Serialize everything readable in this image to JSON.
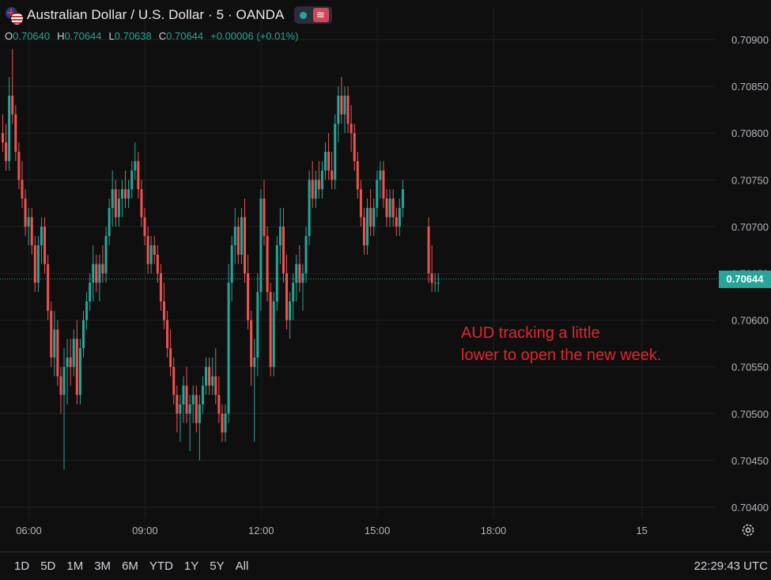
{
  "header": {
    "title": "Australian Dollar / U.S. Dollar · 5 · OANDA",
    "icons": [
      "au-us-flag-icon",
      "live-dot-icon",
      "wave-icon"
    ]
  },
  "ohlc": {
    "o_label": "O",
    "o_value": "0.70640",
    "h_label": "H",
    "h_value": "0.70644",
    "l_label": "L",
    "l_value": "0.70638",
    "c_label": "C",
    "c_value": "0.70644",
    "change": "+0.00006 (+0.01%)"
  },
  "annotation": {
    "line1": "AUD tracking a little",
    "line2": "lower to open the new week."
  },
  "last_price": "0.70644",
  "bottom": {
    "ranges": [
      "1D",
      "5D",
      "1M",
      "3M",
      "6M",
      "YTD",
      "1Y",
      "5Y",
      "All"
    ],
    "clock": "22:29:43 UTC"
  },
  "colors": {
    "up": "#26a69a",
    "down": "#ef5350",
    "annotation": "#e3262e",
    "background": "#0f0f0f"
  },
  "chart_data": {
    "type": "candlestick",
    "title": "Australian Dollar / U.S. Dollar · 5 · OANDA",
    "ylim": [
      0.7039,
      0.7092
    ],
    "y_ticks": [
      "0.70900",
      "0.70850",
      "0.70800",
      "0.70750",
      "0.70700",
      "0.70650",
      "0.70600",
      "0.70550",
      "0.70500",
      "0.70450",
      "0.70400"
    ],
    "x_ticks": [
      "06:00",
      "09:00",
      "12:00",
      "15:00",
      "18:00",
      "15"
    ],
    "x_tick_index": [
      6,
      42,
      78,
      114,
      150,
      196
    ],
    "last_price": 0.70644,
    "grid": true,
    "candles": [
      [
        0.708,
        0.7082,
        0.7078,
        0.7079
      ],
      [
        0.7079,
        0.7081,
        0.7076,
        0.7077
      ],
      [
        0.7077,
        0.7086,
        0.7076,
        0.7084
      ],
      [
        0.7084,
        0.7089,
        0.7081,
        0.7082
      ],
      [
        0.7082,
        0.7083,
        0.7077,
        0.7078
      ],
      [
        0.7078,
        0.7079,
        0.7074,
        0.7075
      ],
      [
        0.7075,
        0.7077,
        0.7072,
        0.7073
      ],
      [
        0.7073,
        0.7074,
        0.7069,
        0.707
      ],
      [
        0.707,
        0.7072,
        0.7068,
        0.7071
      ],
      [
        0.7071,
        0.7072,
        0.7067,
        0.7068
      ],
      [
        0.7068,
        0.7069,
        0.7063,
        0.7064
      ],
      [
        0.7064,
        0.7069,
        0.7063,
        0.7068
      ],
      [
        0.7068,
        0.7071,
        0.7066,
        0.707
      ],
      [
        0.707,
        0.7071,
        0.7065,
        0.7066
      ],
      [
        0.7066,
        0.7067,
        0.706,
        0.7061
      ],
      [
        0.7061,
        0.7062,
        0.7055,
        0.7056
      ],
      [
        0.7056,
        0.7061,
        0.7054,
        0.7059
      ],
      [
        0.7059,
        0.706,
        0.7053,
        0.7054
      ],
      [
        0.7054,
        0.7055,
        0.705,
        0.7052
      ],
      [
        0.7052,
        0.7057,
        0.7044,
        0.7055
      ],
      [
        0.7055,
        0.7058,
        0.7051,
        0.7056
      ],
      [
        0.7056,
        0.7058,
        0.7053,
        0.7055
      ],
      [
        0.7055,
        0.7059,
        0.7054,
        0.7058
      ],
      [
        0.7058,
        0.706,
        0.7051,
        0.7052
      ],
      [
        0.7052,
        0.7058,
        0.7051,
        0.7057
      ],
      [
        0.7057,
        0.7061,
        0.7056,
        0.706
      ],
      [
        0.706,
        0.7063,
        0.7059,
        0.7062
      ],
      [
        0.7062,
        0.7065,
        0.7061,
        0.7064
      ],
      [
        0.7064,
        0.7068,
        0.7062,
        0.7066
      ],
      [
        0.7066,
        0.7067,
        0.7063,
        0.7064
      ],
      [
        0.7064,
        0.7067,
        0.7062,
        0.7066
      ],
      [
        0.7066,
        0.7068,
        0.7064,
        0.7065
      ],
      [
        0.7065,
        0.707,
        0.7064,
        0.7069
      ],
      [
        0.7069,
        0.7073,
        0.7068,
        0.7072
      ],
      [
        0.7072,
        0.7076,
        0.707,
        0.7074
      ],
      [
        0.7074,
        0.7075,
        0.707,
        0.7071
      ],
      [
        0.7071,
        0.7074,
        0.707,
        0.7073
      ],
      [
        0.7073,
        0.7075,
        0.7071,
        0.7074
      ],
      [
        0.7074,
        0.7076,
        0.7072,
        0.7073
      ],
      [
        0.7073,
        0.7075,
        0.7072,
        0.7074
      ],
      [
        0.7074,
        0.7077,
        0.7073,
        0.7076
      ],
      [
        0.7076,
        0.7079,
        0.7075,
        0.7077
      ],
      [
        0.7077,
        0.7078,
        0.7073,
        0.7074
      ],
      [
        0.7074,
        0.7075,
        0.707,
        0.7071
      ],
      [
        0.7071,
        0.7072,
        0.7068,
        0.7069
      ],
      [
        0.7069,
        0.707,
        0.7065,
        0.7066
      ],
      [
        0.7066,
        0.7069,
        0.7065,
        0.7068
      ],
      [
        0.7068,
        0.7069,
        0.7066,
        0.7067
      ],
      [
        0.7067,
        0.7068,
        0.7064,
        0.7065
      ],
      [
        0.7065,
        0.7066,
        0.7061,
        0.7062
      ],
      [
        0.7062,
        0.7064,
        0.7059,
        0.706
      ],
      [
        0.706,
        0.7061,
        0.7056,
        0.7057
      ],
      [
        0.7057,
        0.7059,
        0.7054,
        0.7055
      ],
      [
        0.7055,
        0.7056,
        0.7051,
        0.7052
      ],
      [
        0.7052,
        0.7053,
        0.7048,
        0.705
      ],
      [
        0.705,
        0.7052,
        0.7047,
        0.7051
      ],
      [
        0.7051,
        0.7054,
        0.7049,
        0.7053
      ],
      [
        0.7053,
        0.7055,
        0.7049,
        0.705
      ],
      [
        0.705,
        0.7052,
        0.7046,
        0.7051
      ],
      [
        0.7051,
        0.7053,
        0.7049,
        0.7052
      ],
      [
        0.7052,
        0.7053,
        0.7048,
        0.7049
      ],
      [
        0.7049,
        0.7052,
        0.7045,
        0.7051
      ],
      [
        0.7051,
        0.7054,
        0.705,
        0.7053
      ],
      [
        0.7053,
        0.7056,
        0.7052,
        0.7055
      ],
      [
        0.7055,
        0.7056,
        0.7052,
        0.7053
      ],
      [
        0.7053,
        0.7056,
        0.7052,
        0.7054
      ],
      [
        0.7054,
        0.7057,
        0.7051,
        0.7052
      ],
      [
        0.7052,
        0.7054,
        0.7049,
        0.705
      ],
      [
        0.705,
        0.7051,
        0.7047,
        0.7048
      ],
      [
        0.7048,
        0.7051,
        0.7047,
        0.705
      ],
      [
        0.705,
        0.7066,
        0.7049,
        0.7064
      ],
      [
        0.7064,
        0.7069,
        0.7062,
        0.7068
      ],
      [
        0.7068,
        0.7072,
        0.7066,
        0.707
      ],
      [
        0.707,
        0.7071,
        0.7066,
        0.7067
      ],
      [
        0.7067,
        0.7072,
        0.7066,
        0.7071
      ],
      [
        0.7071,
        0.7073,
        0.7064,
        0.7065
      ],
      [
        0.7065,
        0.7067,
        0.7059,
        0.706
      ],
      [
        0.706,
        0.7061,
        0.7053,
        0.7055
      ],
      [
        0.7055,
        0.7058,
        0.7047,
        0.7056
      ],
      [
        0.7056,
        0.7065,
        0.7054,
        0.7063
      ],
      [
        0.7063,
        0.7074,
        0.7061,
        0.7073
      ],
      [
        0.7073,
        0.7075,
        0.7068,
        0.7069
      ],
      [
        0.7069,
        0.707,
        0.7062,
        0.7063
      ],
      [
        0.7063,
        0.7064,
        0.7054,
        0.7055
      ],
      [
        0.7055,
        0.7063,
        0.7054,
        0.7062
      ],
      [
        0.7062,
        0.7069,
        0.7061,
        0.7068
      ],
      [
        0.7068,
        0.7072,
        0.7066,
        0.707
      ],
      [
        0.707,
        0.7072,
        0.7064,
        0.7065
      ],
      [
        0.7065,
        0.7067,
        0.7059,
        0.706
      ],
      [
        0.706,
        0.7063,
        0.7058,
        0.7062
      ],
      [
        0.7062,
        0.7065,
        0.706,
        0.7064
      ],
      [
        0.7064,
        0.7067,
        0.7062,
        0.7066
      ],
      [
        0.7066,
        0.7068,
        0.7063,
        0.7064
      ],
      [
        0.7064,
        0.7066,
        0.7061,
        0.7065
      ],
      [
        0.7065,
        0.707,
        0.7064,
        0.7069
      ],
      [
        0.7069,
        0.7076,
        0.7068,
        0.7075
      ],
      [
        0.7075,
        0.7077,
        0.7072,
        0.7073
      ],
      [
        0.7073,
        0.7076,
        0.7072,
        0.7075
      ],
      [
        0.7075,
        0.7077,
        0.7073,
        0.7074
      ],
      [
        0.7074,
        0.7077,
        0.7073,
        0.7076
      ],
      [
        0.7076,
        0.7079,
        0.7075,
        0.7078
      ],
      [
        0.7078,
        0.708,
        0.7075,
        0.7076
      ],
      [
        0.7076,
        0.7078,
        0.7074,
        0.7075
      ],
      [
        0.7075,
        0.7082,
        0.7074,
        0.7081
      ],
      [
        0.7081,
        0.7085,
        0.7079,
        0.7084
      ],
      [
        0.7084,
        0.7086,
        0.7081,
        0.7082
      ],
      [
        0.7082,
        0.7085,
        0.708,
        0.7084
      ],
      [
        0.7084,
        0.7085,
        0.708,
        0.7081
      ],
      [
        0.7081,
        0.7083,
        0.7078,
        0.708
      ],
      [
        0.708,
        0.7081,
        0.7076,
        0.7077
      ],
      [
        0.7077,
        0.7078,
        0.7073,
        0.7074
      ],
      [
        0.7074,
        0.7075,
        0.707,
        0.7071
      ],
      [
        0.7071,
        0.7072,
        0.7067,
        0.7068
      ],
      [
        0.7068,
        0.7073,
        0.7067,
        0.7072
      ],
      [
        0.7072,
        0.7074,
        0.7069,
        0.707
      ],
      [
        0.707,
        0.7073,
        0.7069,
        0.7072
      ],
      [
        0.7072,
        0.7076,
        0.7071,
        0.7075
      ],
      [
        0.7075,
        0.7077,
        0.7073,
        0.7076
      ],
      [
        0.7076,
        0.7077,
        0.7072,
        0.7073
      ],
      [
        0.7073,
        0.7074,
        0.707,
        0.7071
      ],
      [
        0.7071,
        0.7074,
        0.707,
        0.7073
      ],
      [
        0.7073,
        0.7074,
        0.707,
        0.7071
      ],
      [
        0.7071,
        0.7072,
        0.7069,
        0.707
      ],
      [
        0.707,
        0.7073,
        0.7069,
        0.7072
      ],
      [
        0.7072,
        0.7075,
        0.7071,
        0.7074
      ],
      [
        0.707,
        0.7071,
        0.7064,
        0.7065
      ],
      [
        0.7065,
        0.7068,
        0.7063,
        0.7064
      ],
      [
        0.7064,
        0.7065,
        0.7063,
        0.7064
      ],
      [
        0.7064,
        0.7065,
        0.7063,
        0.7064
      ]
    ]
  }
}
